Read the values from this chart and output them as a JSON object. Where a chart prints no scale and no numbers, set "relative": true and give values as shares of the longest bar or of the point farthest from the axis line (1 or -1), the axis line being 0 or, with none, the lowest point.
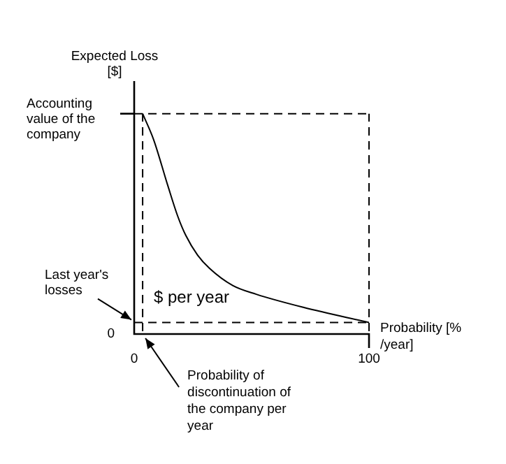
{
  "chart_data": {
    "type": "line",
    "relative": true,
    "xlabel": "Probability [% /year]",
    "ylabel": "Expected Loss [$]",
    "x": [
      3.6,
      8.3,
      14.3,
      18.5,
      22,
      27,
      32,
      42,
      52,
      72,
      100
    ],
    "series": [
      {
        "color": "#000000",
        "values": [
          1.0,
          0.88,
          0.67,
          0.53,
          0.44,
          0.35,
          0.29,
          0.21,
          0.17,
          0.11,
          0.04
        ]
      }
    ],
    "xlim": [
      0,
      100
    ],
    "xticks": [
      0,
      100
    ],
    "ref_lines": [
      {
        "axis": "y",
        "value": 1,
        "label": "Accounting value of the company",
        "line_style": "dashed",
        "color": "#000000"
      },
      {
        "axis": "y",
        "value": 0.04,
        "label": "Last year's losses",
        "line_style": "dashed",
        "color": "#000000"
      },
      {
        "axis": "x",
        "value": 3.6,
        "label": "Probability of discontinuation of the company per year",
        "line_style": "dashed",
        "color": "#000000"
      },
      {
        "axis": "x",
        "value": 100,
        "line_style": "dashed",
        "color": "#000000"
      }
    ],
    "annotations": [
      "$ per year",
      "0"
    ],
    "grid": false,
    "legend": false,
    "marker": "none",
    "line_style": "solid"
  }
}
